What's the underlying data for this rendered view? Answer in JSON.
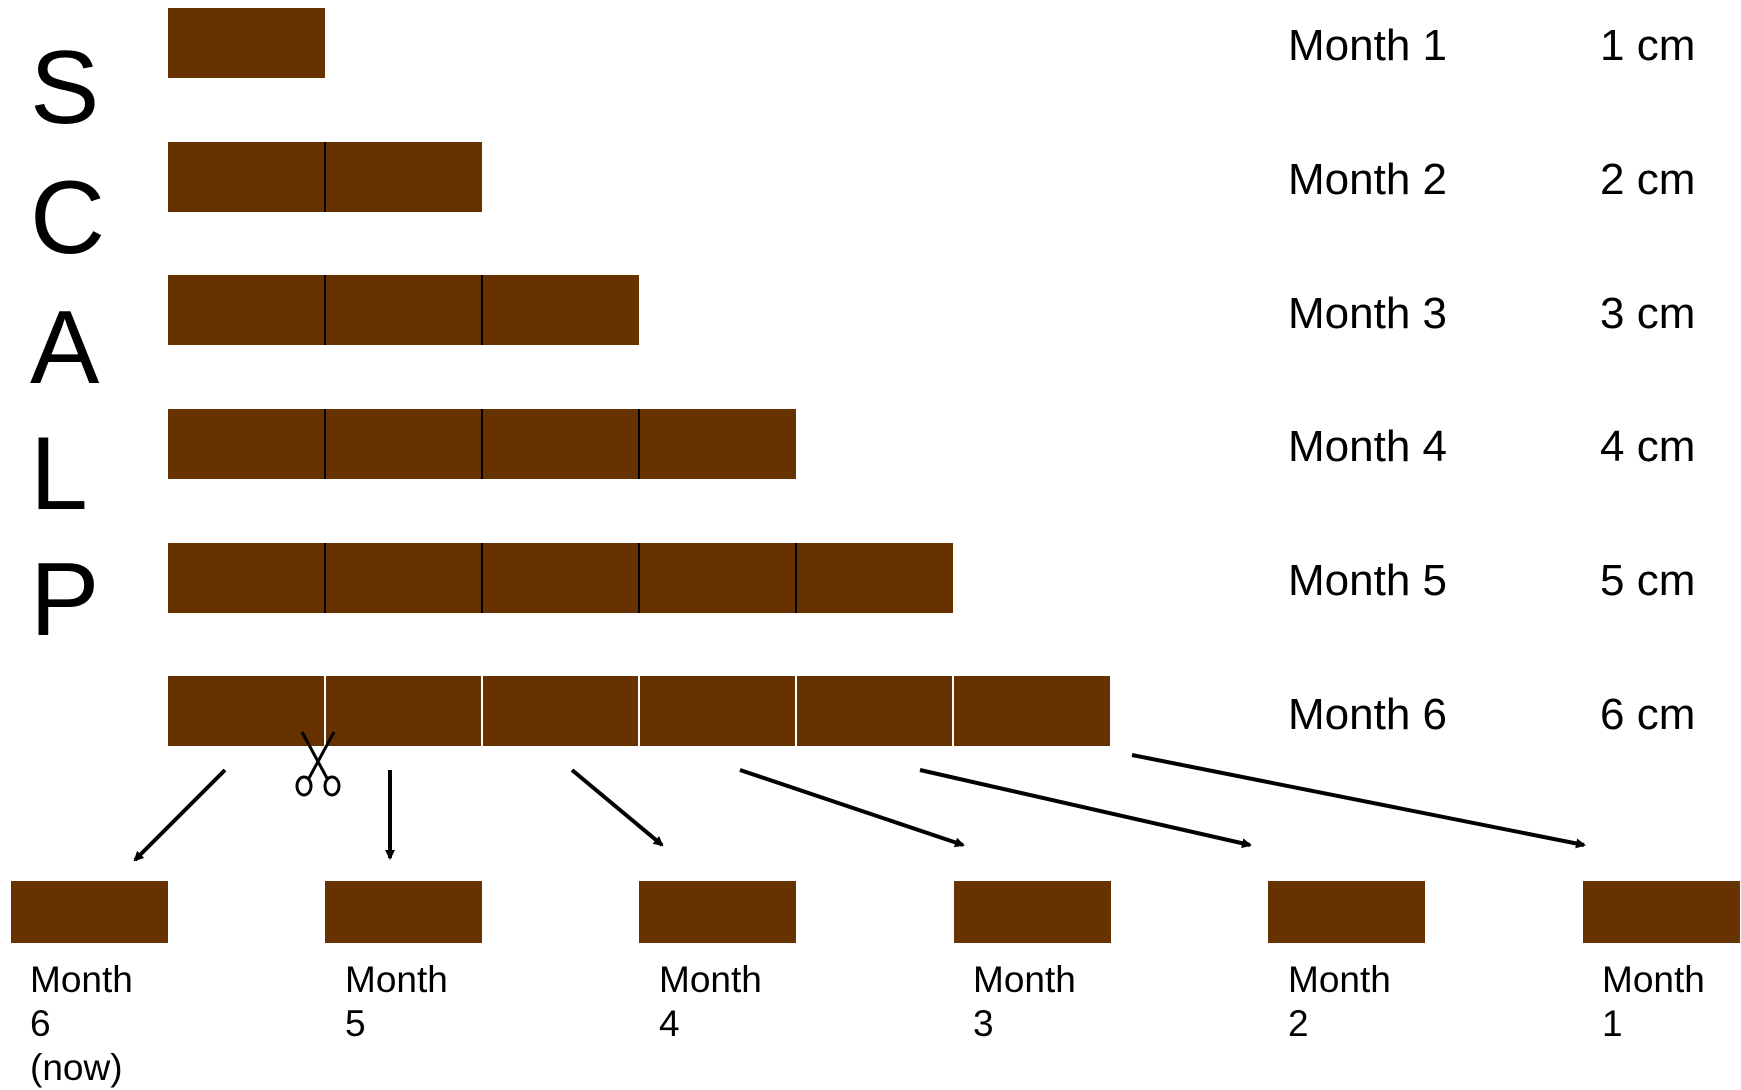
{
  "colors": {
    "hair": "#663300",
    "divider_dark": "#000000",
    "divider_light": "#ffffff",
    "arrow": "#000000"
  },
  "scalp_letters": [
    "S",
    "C",
    "A",
    "L",
    "P"
  ],
  "rows": [
    {
      "month_label": "Month 1",
      "length_label": "1 cm",
      "segments": 1
    },
    {
      "month_label": "Month 2",
      "length_label": "2 cm",
      "segments": 2
    },
    {
      "month_label": "Month 3",
      "length_label": "3 cm",
      "segments": 3
    },
    {
      "month_label": "Month 4",
      "length_label": "4 cm",
      "segments": 4
    },
    {
      "month_label": "Month 5",
      "length_label": "5 cm",
      "segments": 5
    },
    {
      "month_label": "Month 6",
      "length_label": "6 cm",
      "segments": 6
    }
  ],
  "cut_icon": "scissors-icon",
  "segments_out": [
    {
      "lines": [
        "Month",
        "6",
        "(now)"
      ]
    },
    {
      "lines": [
        "Month",
        "5"
      ]
    },
    {
      "lines": [
        "Month",
        "4"
      ]
    },
    {
      "lines": [
        "Month",
        "3"
      ]
    },
    {
      "lines": [
        "Month",
        "2"
      ]
    },
    {
      "lines": [
        "Month",
        "1"
      ]
    }
  ]
}
